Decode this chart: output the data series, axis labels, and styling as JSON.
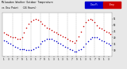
{
  "title": "Milwaukee Weather Outdoor Temperature",
  "subtitle_line": "vs Dew Point   (24 Hours)",
  "bg_color": "#e8e8e8",
  "plot_bg": "#ffffff",
  "temp_color": "#cc0000",
  "dew_color": "#0000cc",
  "ylim": [
    25,
    60
  ],
  "yticks": [
    30,
    35,
    40,
    45,
    50,
    55
  ],
  "temp_x": [
    0,
    1,
    2,
    3,
    4,
    5,
    6,
    7,
    8,
    9,
    10,
    11,
    12,
    13,
    14,
    15,
    16,
    17,
    18,
    19,
    20,
    21,
    22,
    23,
    24,
    25,
    26,
    27,
    28,
    29,
    30,
    31,
    32,
    33,
    34,
    35,
    36,
    37,
    38,
    39,
    40,
    41,
    42,
    43,
    44,
    45,
    46,
    47
  ],
  "temp_y": [
    44,
    43,
    42,
    41,
    40,
    40,
    39,
    39,
    40,
    44,
    48,
    51,
    53,
    54,
    55,
    54,
    53,
    51,
    50,
    48,
    47,
    46,
    45,
    44,
    43,
    42,
    41,
    40,
    39,
    38,
    37,
    36,
    38,
    41,
    45,
    49,
    52,
    54,
    55,
    54,
    52,
    50,
    48,
    47,
    46,
    45,
    44,
    43
  ],
  "dew_x": [
    0,
    1,
    2,
    3,
    4,
    5,
    6,
    7,
    8,
    9,
    10,
    11,
    12,
    13,
    14,
    15,
    16,
    17,
    18,
    19,
    20,
    21,
    22,
    23,
    24,
    25,
    26,
    27,
    28,
    29,
    30,
    31,
    32,
    33,
    34,
    35,
    36,
    37,
    38,
    39,
    40,
    41,
    42,
    43,
    44,
    45,
    46,
    47
  ],
  "dew_y": [
    38,
    37,
    36,
    35,
    34,
    33,
    32,
    31,
    31,
    31,
    30,
    30,
    30,
    31,
    32,
    33,
    35,
    37,
    38,
    39,
    39,
    39,
    38,
    37,
    36,
    35,
    34,
    33,
    32,
    31,
    30,
    29,
    29,
    30,
    31,
    33,
    35,
    37,
    39,
    40,
    40,
    40,
    39,
    38,
    37,
    36,
    35,
    34
  ],
  "grid_positions": [
    4,
    8,
    12,
    16,
    20,
    24,
    28,
    32,
    36,
    40,
    44
  ],
  "xtick_positions": [
    0,
    2,
    4,
    6,
    8,
    10,
    12,
    14,
    16,
    18,
    20,
    22,
    24,
    26,
    28,
    30,
    32,
    34,
    36,
    38,
    40,
    42,
    44,
    46
  ],
  "xtick_labels": [
    "1",
    "3",
    "5",
    "7",
    "9",
    "1",
    "3",
    "5",
    "7",
    "9",
    "1",
    "3",
    "1",
    "3",
    "5",
    "7",
    "9",
    "1",
    "3",
    "5",
    "7",
    "9",
    "1",
    "3"
  ],
  "legend_blue_label": "Dew Pt",
  "legend_red_label": "Temp",
  "dot_size": 1.2
}
